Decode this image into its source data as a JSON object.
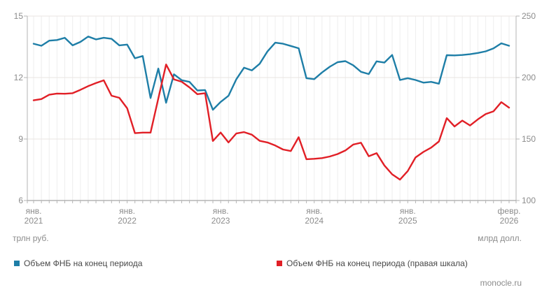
{
  "chart_data": {
    "type": "line",
    "title": "",
    "x_start": "2021-01",
    "x_end": "2026-02",
    "x_interval": "monthly",
    "x_tick_labels": [
      {
        "top": "янв.",
        "bottom": "2021",
        "index": 0
      },
      {
        "top": "янв.",
        "bottom": "2022",
        "index": 12
      },
      {
        "top": "янв.",
        "bottom": "2023",
        "index": 24
      },
      {
        "top": "янв.",
        "bottom": "2024",
        "index": 36
      },
      {
        "top": "янв.",
        "bottom": "2025",
        "index": 48
      },
      {
        "top": "февр.",
        "bottom": "2026",
        "index": 61
      }
    ],
    "left_axis": {
      "unit": "трлн руб.",
      "ticks": [
        15,
        12,
        9,
        6
      ],
      "range": [
        6,
        15
      ]
    },
    "right_axis": {
      "unit": "млрд долл.",
      "ticks": [
        250,
        200,
        150,
        100
      ],
      "range": [
        100,
        250
      ]
    },
    "grid": true,
    "legend_position": "bottom",
    "source": "monocle.ru",
    "series": [
      {
        "name": "Объем ФНБ на конец периода",
        "axis": "left",
        "color": "#1e7ea7",
        "values": [
          13.65,
          13.55,
          13.8,
          13.83,
          13.94,
          13.57,
          13.74,
          14.0,
          13.86,
          13.94,
          13.89,
          13.57,
          13.61,
          12.94,
          13.05,
          11.0,
          12.44,
          10.77,
          12.16,
          11.87,
          11.79,
          11.37,
          11.39,
          10.43,
          10.81,
          11.11,
          11.91,
          12.48,
          12.35,
          12.67,
          13.27,
          13.7,
          13.65,
          13.54,
          13.43,
          11.97,
          11.92,
          12.25,
          12.53,
          12.75,
          12.8,
          12.6,
          12.28,
          12.17,
          12.79,
          12.73,
          13.1,
          11.88,
          11.97,
          11.88,
          11.75,
          11.79,
          11.7,
          13.09,
          13.08,
          13.1,
          13.14,
          13.2,
          13.28,
          13.42,
          13.67,
          13.55
        ]
      },
      {
        "name": "Объем ФНБ на конец периода (правая шкала)",
        "axis": "right",
        "color": "#e11f26",
        "values": [
          181.5,
          182.5,
          186.0,
          187.0,
          186.8,
          187.3,
          190.0,
          193.0,
          195.5,
          197.7,
          185.2,
          183.5,
          175.0,
          154.8,
          155.2,
          155.2,
          183.0,
          210.6,
          198.5,
          196.6,
          192.0,
          186.5,
          187.3,
          148.4,
          155.3,
          147.2,
          154.5,
          155.6,
          153.5,
          148.5,
          147.2,
          144.7,
          141.5,
          140.2,
          151.5,
          133.6,
          133.9,
          134.5,
          135.8,
          137.8,
          140.7,
          145.5,
          147.0,
          136.0,
          138.5,
          128.5,
          121.3,
          117.0,
          124.0,
          135.0,
          139.5,
          143.0,
          148.0,
          167.0,
          160.2,
          165.0,
          161.0,
          166.0,
          170.3,
          172.5,
          180.0,
          175.5
        ]
      }
    ]
  }
}
